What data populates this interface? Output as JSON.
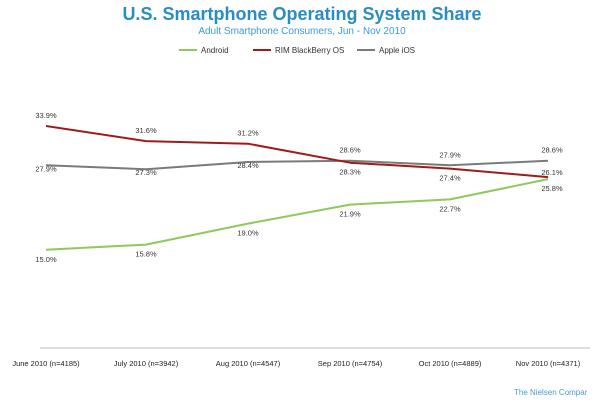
{
  "chart_data": {
    "type": "line",
    "title": "U.S. Smartphone Operating System Share",
    "subtitle": "Adult Smartphone Consumers, Jun - Nov 2010",
    "xlabel": "",
    "ylabel": "",
    "grid": false,
    "legend_position": "top",
    "categories": [
      "June 2010 (n=4185)",
      "July 2010 (n=3942)",
      "Aug 2010 (n=4547)",
      "Sep 2010 (n=4754)",
      "Oct 2010 (n=4889)",
      "Nov 2010 (n=4371)"
    ],
    "series": [
      {
        "name": "Android",
        "color": "#8dc95b",
        "values": [
          15.0,
          15.8,
          19.0,
          21.9,
          22.7,
          25.8
        ],
        "labels": [
          "15.0%",
          "15.8%",
          "19.0%",
          "21.9%",
          "22.7%",
          "25.8%"
        ]
      },
      {
        "name": "RIM BlackBerry OS",
        "color": "#a11a1a",
        "values": [
          33.9,
          31.6,
          31.2,
          28.3,
          27.4,
          26.1
        ],
        "labels": [
          "33.9%",
          "31.6%",
          "31.2%",
          "28.3%",
          "27.4%",
          "26.1%"
        ]
      },
      {
        "name": "Apple iOS",
        "color": "#7a7a7a",
        "values": [
          27.9,
          27.3,
          28.4,
          28.6,
          27.9,
          28.6
        ],
        "labels": [
          "27.9%",
          "27.3%",
          "28.4%",
          "28.6%",
          "27.9%",
          "28.6%"
        ]
      }
    ],
    "source": "The Nielsen Compar"
  },
  "colors": {
    "title": "#2a8cc7",
    "subtitle": "#3a9ad6",
    "source": "#4a9bd0",
    "axis": "#bbbbbb"
  }
}
